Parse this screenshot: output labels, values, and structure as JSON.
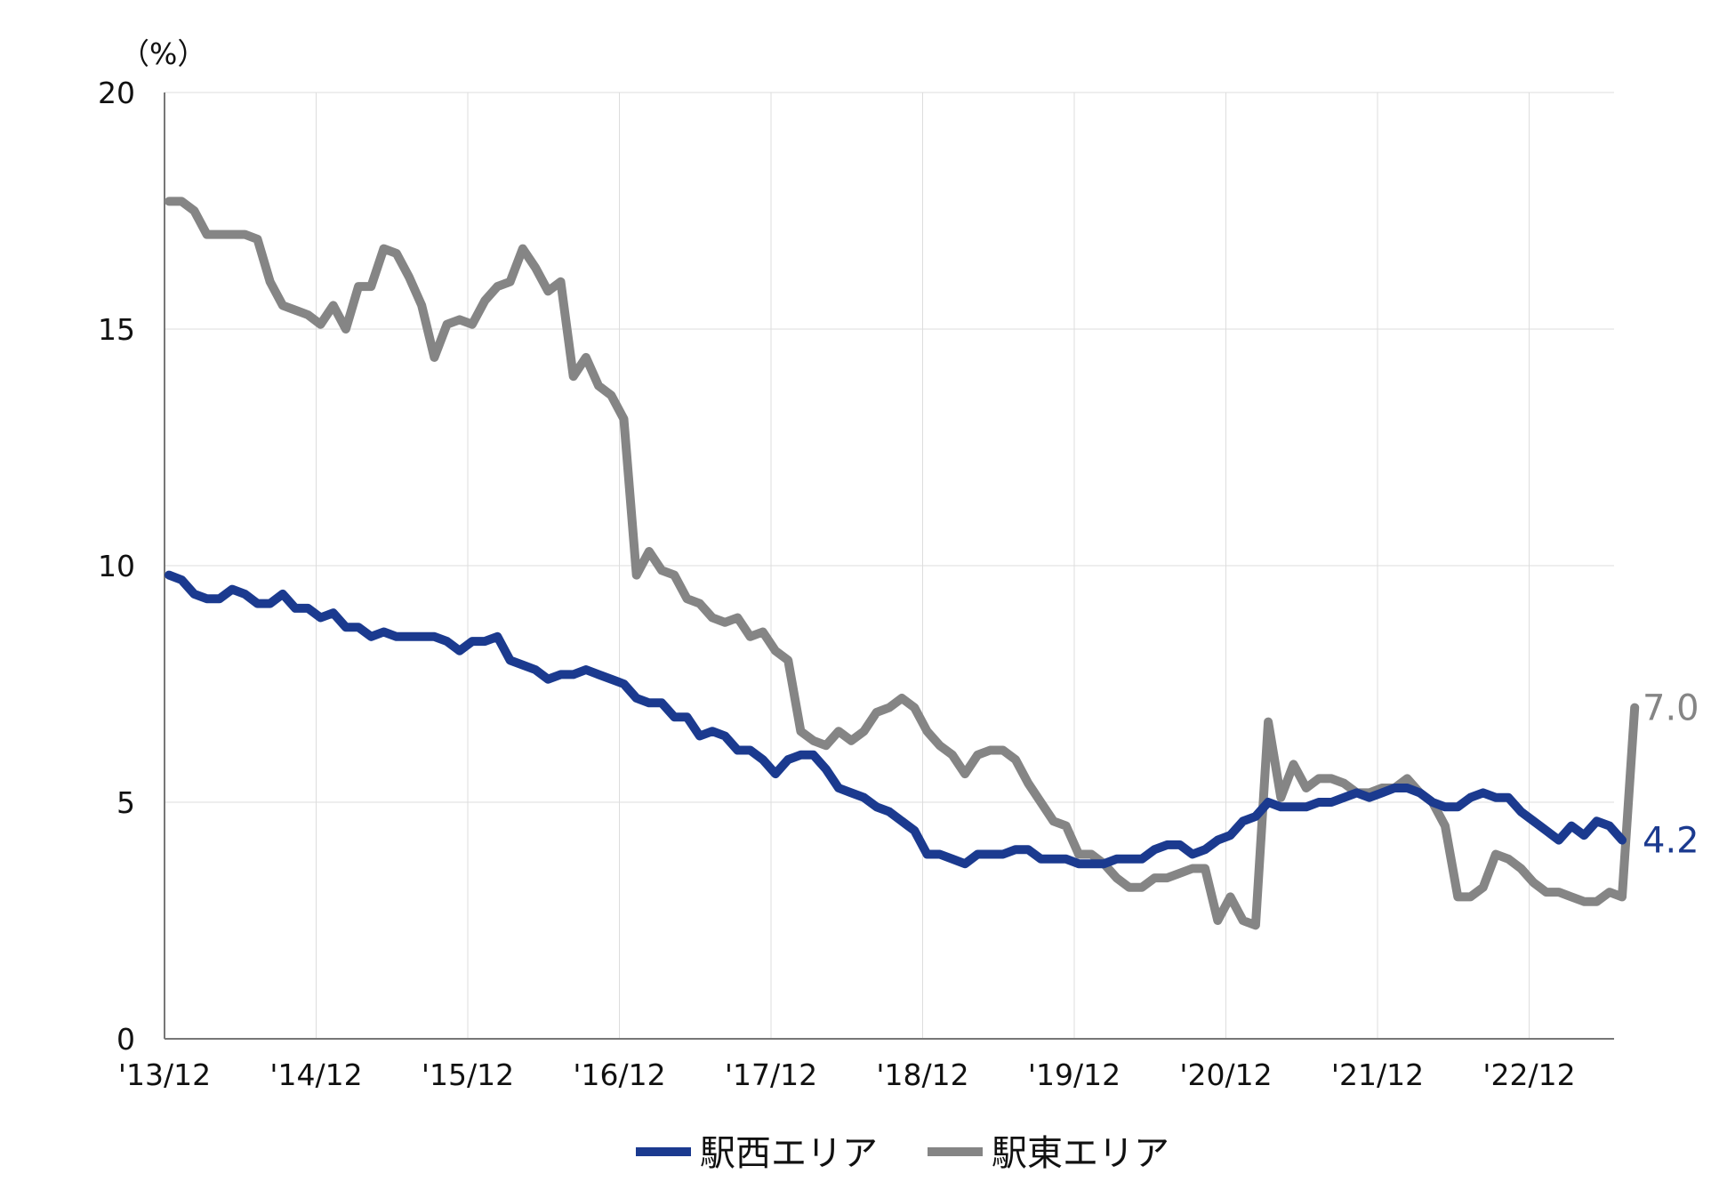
{
  "chart_data": {
    "type": "line",
    "unit": "（%）",
    "ylim": [
      0,
      20
    ],
    "y_ticks": [
      "0",
      "5",
      "10",
      "15",
      "20"
    ],
    "x_ticks": [
      "'13/12",
      "'14/12",
      "'15/12",
      "'16/12",
      "'17/12",
      "'18/12",
      "'19/12",
      "'20/12",
      "'21/12",
      "'22/12"
    ],
    "x_start": "2013-12",
    "grid": true,
    "legend_position": "bottom",
    "series": [
      {
        "name": "駅西エリア",
        "color": "#1B3A8F",
        "end_label": "4.2",
        "values": [
          9.8,
          9.7,
          9.4,
          9.3,
          9.3,
          9.5,
          9.4,
          9.2,
          9.2,
          9.4,
          9.1,
          9.1,
          8.9,
          9.0,
          8.7,
          8.7,
          8.5,
          8.6,
          8.5,
          8.5,
          8.5,
          8.5,
          8.4,
          8.2,
          8.4,
          8.4,
          8.5,
          8.0,
          7.9,
          7.8,
          7.6,
          7.7,
          7.7,
          7.8,
          7.7,
          7.6,
          7.5,
          7.2,
          7.1,
          7.1,
          6.8,
          6.8,
          6.4,
          6.5,
          6.4,
          6.1,
          6.1,
          5.9,
          5.6,
          5.9,
          6.0,
          6.0,
          5.7,
          5.3,
          5.2,
          5.1,
          4.9,
          4.8,
          4.6,
          4.4,
          3.9,
          3.9,
          3.8,
          3.7,
          3.9,
          3.9,
          3.9,
          4.0,
          4.0,
          3.8,
          3.8,
          3.8,
          3.7,
          3.7,
          3.7,
          3.8,
          3.8,
          3.8,
          4.0,
          4.1,
          4.1,
          3.9,
          4.0,
          4.2,
          4.3,
          4.6,
          4.7,
          5.0,
          4.9,
          4.9,
          4.9,
          5.0,
          5.0,
          5.1,
          5.2,
          5.1,
          5.2,
          5.3,
          5.3,
          5.2,
          5.0,
          4.9,
          4.9,
          5.1,
          5.2,
          5.1,
          5.1,
          4.8,
          4.6,
          4.4,
          4.2,
          4.5,
          4.3,
          4.6,
          4.5,
          4.2
        ]
      },
      {
        "name": "駅東エリア",
        "color": "#858585",
        "end_label": "7.0",
        "values": [
          17.7,
          17.7,
          17.5,
          17.0,
          17.0,
          17.0,
          17.0,
          16.9,
          16.0,
          15.5,
          15.4,
          15.3,
          15.1,
          15.5,
          15.0,
          15.9,
          15.9,
          16.7,
          16.6,
          16.1,
          15.5,
          14.4,
          15.1,
          15.2,
          15.1,
          15.6,
          15.9,
          16.0,
          16.7,
          16.3,
          15.8,
          16.0,
          14.0,
          14.4,
          13.8,
          13.6,
          13.1,
          9.8,
          10.3,
          9.9,
          9.8,
          9.3,
          9.2,
          8.9,
          8.8,
          8.9,
          8.5,
          8.6,
          8.2,
          8.0,
          6.5,
          6.3,
          6.2,
          6.5,
          6.3,
          6.5,
          6.9,
          7.0,
          7.2,
          7.0,
          6.5,
          6.2,
          6.0,
          5.6,
          6.0,
          6.1,
          6.1,
          5.9,
          5.4,
          5.0,
          4.6,
          4.5,
          3.9,
          3.9,
          3.7,
          3.4,
          3.2,
          3.2,
          3.4,
          3.4,
          3.5,
          3.6,
          3.6,
          2.5,
          3.0,
          2.5,
          2.4,
          6.7,
          5.1,
          5.8,
          5.3,
          5.5,
          5.5,
          5.4,
          5.2,
          5.2,
          5.3,
          5.3,
          5.5,
          5.2,
          5.0,
          4.5,
          3.0,
          3.0,
          3.2,
          3.9,
          3.8,
          3.6,
          3.3,
          3.1,
          3.1,
          3.0,
          2.9,
          2.9,
          3.1,
          3.0,
          7.0
        ]
      }
    ]
  }
}
